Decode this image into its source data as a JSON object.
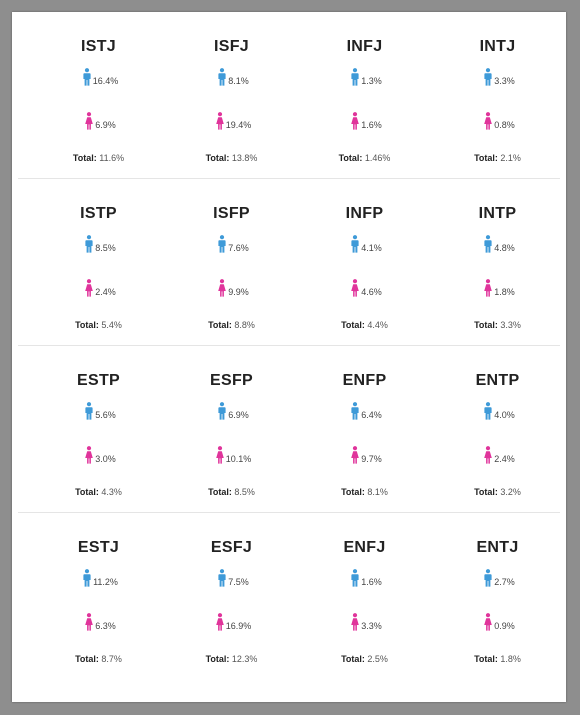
{
  "colors": {
    "male": "#3e9ad8",
    "female": "#e0349b"
  },
  "rows": [
    [
      {
        "type": "ISTJ",
        "male": "16.4%",
        "female": "6.9%",
        "total": "11.6%"
      },
      {
        "type": "ISFJ",
        "male": "8.1%",
        "female": "19.4%",
        "total": "13.8%"
      },
      {
        "type": "INFJ",
        "male": "1.3%",
        "female": "1.6%",
        "total": "1.46%"
      },
      {
        "type": "INTJ",
        "male": "3.3%",
        "female": "0.8%",
        "total": "2.1%"
      }
    ],
    [
      {
        "type": "ISTP",
        "male": "8.5%",
        "female": "2.4%",
        "total": "5.4%"
      },
      {
        "type": "ISFP",
        "male": "7.6%",
        "female": "9.9%",
        "total": "8.8%"
      },
      {
        "type": "INFP",
        "male": "4.1%",
        "female": "4.6%",
        "total": "4.4%"
      },
      {
        "type": "INTP",
        "male": "4.8%",
        "female": "1.8%",
        "total": "3.3%"
      }
    ],
    [
      {
        "type": "ESTP",
        "male": "5.6%",
        "female": "3.0%",
        "total": "4.3%"
      },
      {
        "type": "ESFP",
        "male": "6.9%",
        "female": "10.1%",
        "total": "8.5%"
      },
      {
        "type": "ENFP",
        "male": "6.4%",
        "female": "9.7%",
        "total": "8.1%"
      },
      {
        "type": "ENTP",
        "male": "4.0%",
        "female": "2.4%",
        "total": "3.2%"
      }
    ],
    [
      {
        "type": "ESTJ",
        "male": "11.2%",
        "female": "6.3%",
        "total": "8.7%"
      },
      {
        "type": "ESFJ",
        "male": "7.5%",
        "female": "16.9%",
        "total": "12.3%"
      },
      {
        "type": "ENFJ",
        "male": "1.6%",
        "female": "3.3%",
        "total": "2.5%"
      },
      {
        "type": "ENTJ",
        "male": "2.7%",
        "female": "0.9%",
        "total": "1.8%"
      }
    ]
  ],
  "total_label": "Total:"
}
